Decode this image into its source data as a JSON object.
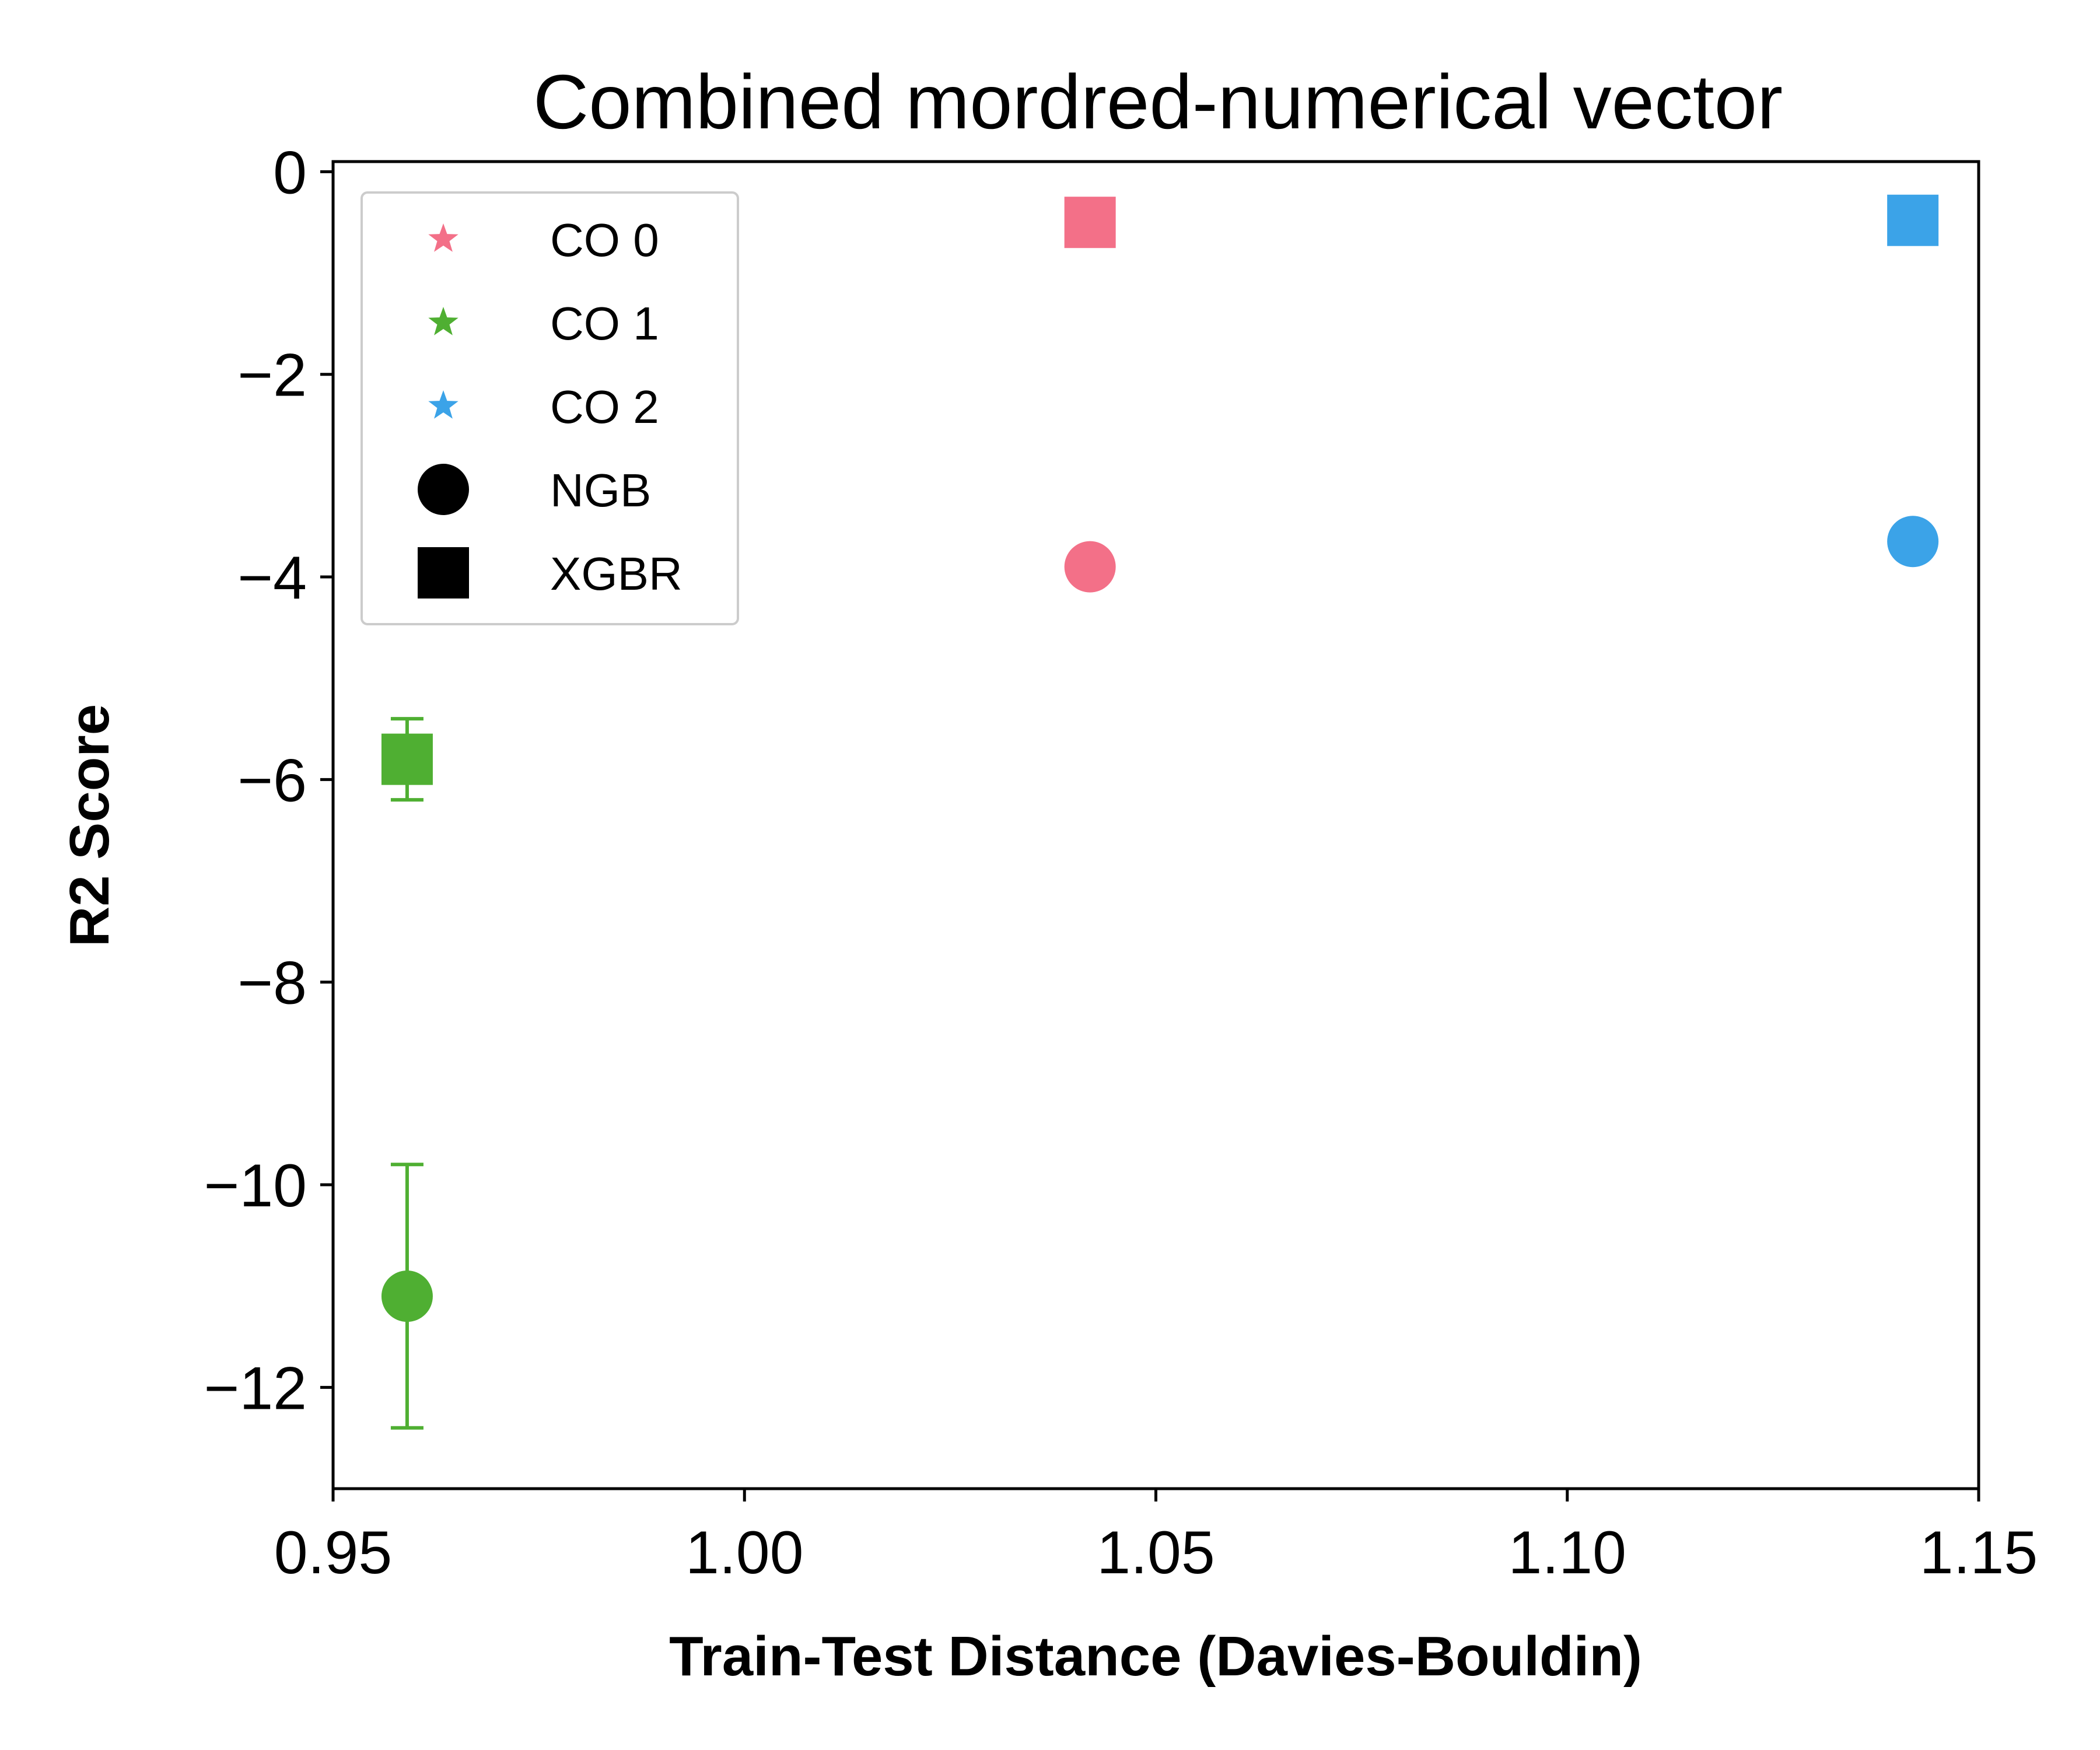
{
  "chart_data": {
    "type": "scatter",
    "title": "Combined mordred-numerical vector",
    "xlabel": "Train-Test Distance (Davies-Bouldin)",
    "ylabel": "R2 Score",
    "xlim": [
      0.95,
      1.15
    ],
    "ylim": [
      -13.0,
      0.1
    ],
    "x_ticks": [
      0.95,
      1.0,
      1.05,
      1.1,
      1.15
    ],
    "x_tick_labels": [
      "0.95",
      "1.00",
      "1.05",
      "1.10",
      "1.15"
    ],
    "y_ticks": [
      0,
      -2,
      -4,
      -6,
      -8,
      -10,
      -12
    ],
    "y_tick_labels": [
      "0",
      "−2",
      "−4",
      "−6",
      "−8",
      "−10",
      "−12"
    ],
    "grid": false,
    "legend_position": "top-left",
    "legend": [
      {
        "label": "CO 0",
        "marker": "star",
        "color": "#F37088"
      },
      {
        "label": "CO 1",
        "marker": "star",
        "color": "#4FAF32"
      },
      {
        "label": "CO 2",
        "marker": "star",
        "color": "#3BA3E8"
      },
      {
        "label": "NGB",
        "marker": "circle",
        "color": "#000000"
      },
      {
        "label": "XGBR",
        "marker": "square",
        "color": "#000000"
      }
    ],
    "points": [
      {
        "group": "CO 0",
        "model": "NGB",
        "x": 1.042,
        "y": -3.9,
        "color": "#F37088",
        "marker": "circle"
      },
      {
        "group": "CO 0",
        "model": "XGBR",
        "x": 1.042,
        "y": -0.5,
        "color": "#F37088",
        "marker": "square"
      },
      {
        "group": "CO 1",
        "model": "NGB",
        "x": 0.959,
        "y": -11.1,
        "err_low": -12.4,
        "err_high": -9.8,
        "color": "#4FAF32",
        "marker": "circle"
      },
      {
        "group": "CO 1",
        "model": "XGBR",
        "x": 0.959,
        "y": -5.8,
        "err_low": -6.2,
        "err_high": -5.4,
        "color": "#4FAF32",
        "marker": "square"
      },
      {
        "group": "CO 2",
        "model": "NGB",
        "x": 1.142,
        "y": -3.65,
        "color": "#3BA3E8",
        "marker": "circle"
      },
      {
        "group": "CO 2",
        "model": "XGBR",
        "x": 1.142,
        "y": -0.48,
        "color": "#3BA3E8",
        "marker": "square"
      }
    ]
  }
}
